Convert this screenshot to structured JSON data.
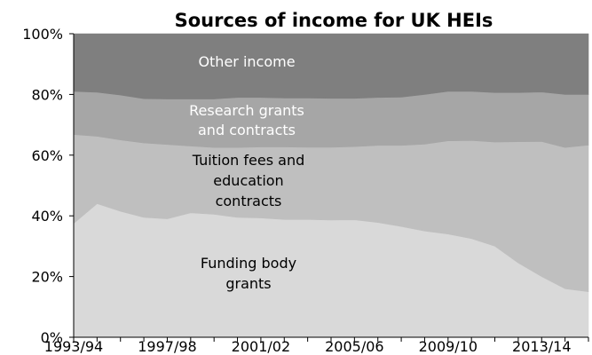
{
  "chart_data": {
    "type": "area",
    "stacking": "percent",
    "title": "Sources of income for UK HEIs",
    "x": [
      "1993/94",
      "1994/95",
      "1995/96",
      "1996/97",
      "1997/98",
      "1998/99",
      "1999/00",
      "2000/01",
      "2001/02",
      "2002/03",
      "2003/04",
      "2004/05",
      "2005/06",
      "2006/07",
      "2007/08",
      "2008/09",
      "2009/10",
      "2010/11",
      "2011/12",
      "2012/13",
      "2013/14",
      "2014/15",
      "2015/16"
    ],
    "x_tick_labels": [
      "1993/94",
      "1997/98",
      "2001/02",
      "2005/06",
      "2009/10",
      "2013/14"
    ],
    "y_ticks": [
      "0%",
      "20%",
      "40%",
      "60%",
      "80%",
      "100%"
    ],
    "ylim": [
      0,
      100
    ],
    "xlabel": "",
    "ylabel": "",
    "grid": false,
    "legend": "none (series labelled inside areas)",
    "series": [
      {
        "name": "Funding body grants",
        "label_lines": [
          "Funding body",
          "grants"
        ],
        "color": "#d9d9d9",
        "values": [
          37.5,
          44,
          41.5,
          39.5,
          39,
          41,
          40.5,
          39.5,
          39.3,
          38.8,
          38.8,
          38.6,
          38.7,
          37.8,
          36.5,
          35,
          34,
          32.5,
          30,
          24.5,
          20,
          16,
          15
        ]
      },
      {
        "name": "Tuition fees and education contracts",
        "label_lines": [
          "Tuition fees and",
          "education",
          "contracts"
        ],
        "color": "#bfbfbf",
        "values": [
          29.3,
          22.2,
          23.5,
          24.5,
          24.5,
          22,
          22,
          23,
          23.4,
          23.9,
          23.8,
          24,
          24.1,
          25.4,
          26.7,
          28.6,
          30.7,
          32.3,
          34.3,
          39.9,
          44.5,
          46.5,
          48.3
        ]
      },
      {
        "name": "Research grants and contracts",
        "label_lines": [
          "Research grants",
          "and contracts"
        ],
        "color": "#a6a6a6",
        "values": [
          14.2,
          14.5,
          14.8,
          14.6,
          15,
          15.5,
          16,
          16.5,
          16.3,
          16.1,
          16.2,
          16.1,
          15.9,
          15.8,
          15.9,
          16.4,
          16.3,
          16.2,
          16.3,
          16.2,
          16.3,
          17.5,
          16.7
        ]
      },
      {
        "name": "Other income",
        "label_lines": [
          "Other income"
        ],
        "color": "#7f7f7f",
        "values": [
          19,
          19.3,
          20.2,
          21.4,
          21.5,
          21.5,
          21.5,
          21,
          21,
          21.2,
          21.2,
          21.3,
          21.3,
          21,
          20.9,
          20,
          19,
          19,
          19.4,
          19.4,
          19.2,
          20,
          20
        ]
      }
    ],
    "colors": {
      "text_on_light": "#000000",
      "text_on_dark": "#ffffff",
      "axis": "#000000"
    }
  }
}
